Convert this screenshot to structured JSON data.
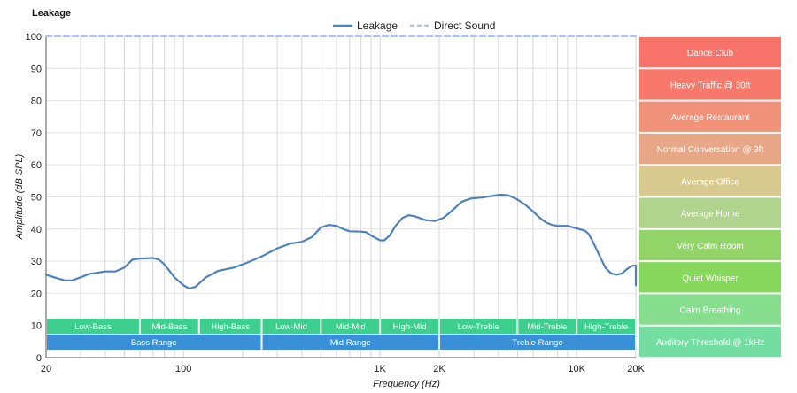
{
  "chart_data": {
    "type": "line",
    "title": "Leakage",
    "xlabel": "Frequency (Hz)",
    "ylabel": "Amplitude (dB SPL)",
    "x_scale": "log",
    "xlim": [
      20,
      20000
    ],
    "ylim": [
      0,
      100
    ],
    "y_ticks": [
      0,
      10,
      20,
      30,
      40,
      50,
      60,
      70,
      80,
      90,
      100
    ],
    "x_ticks": [
      {
        "value": 20,
        "label": "20"
      },
      {
        "value": 100,
        "label": "100"
      },
      {
        "value": 1000,
        "label": "1K"
      },
      {
        "value": 2000,
        "label": "2K"
      },
      {
        "value": 10000,
        "label": "10K"
      },
      {
        "value": 20000,
        "label": "20K"
      }
    ],
    "grid": true,
    "legend": {
      "position": "top-center",
      "items": [
        {
          "name": "Leakage",
          "color": "#4f81bd",
          "style": "solid"
        },
        {
          "name": "Direct Sound",
          "color": "#a9c4ef",
          "style": "dashed"
        }
      ]
    },
    "series": [
      {
        "name": "Leakage",
        "color": "#4f81bd",
        "points": [
          [
            20,
            25.8
          ],
          [
            22,
            25
          ],
          [
            25,
            24
          ],
          [
            27,
            24
          ],
          [
            30,
            25
          ],
          [
            33,
            26
          ],
          [
            40,
            26.8
          ],
          [
            45,
            26.8
          ],
          [
            50,
            28
          ],
          [
            55,
            30.5
          ],
          [
            60,
            30.8
          ],
          [
            70,
            31
          ],
          [
            75,
            30.5
          ],
          [
            80,
            29
          ],
          [
            90,
            25
          ],
          [
            100,
            22.5
          ],
          [
            107,
            21.5
          ],
          [
            115,
            22
          ],
          [
            130,
            25
          ],
          [
            150,
            27
          ],
          [
            180,
            28
          ],
          [
            210,
            29.5
          ],
          [
            250,
            31.5
          ],
          [
            300,
            34
          ],
          [
            350,
            35.5
          ],
          [
            400,
            36
          ],
          [
            450,
            37.5
          ],
          [
            500,
            40.5
          ],
          [
            550,
            41.3
          ],
          [
            600,
            41
          ],
          [
            650,
            40
          ],
          [
            700,
            39.3
          ],
          [
            800,
            39.2
          ],
          [
            850,
            39
          ],
          [
            900,
            38
          ],
          [
            1000,
            36.5
          ],
          [
            1050,
            36.5
          ],
          [
            1120,
            38
          ],
          [
            1200,
            41
          ],
          [
            1300,
            43.5
          ],
          [
            1400,
            44.3
          ],
          [
            1500,
            44
          ],
          [
            1700,
            42.8
          ],
          [
            1900,
            42.5
          ],
          [
            2100,
            43.5
          ],
          [
            2300,
            45.5
          ],
          [
            2600,
            48.5
          ],
          [
            2900,
            49.5
          ],
          [
            3300,
            49.8
          ],
          [
            3700,
            50.3
          ],
          [
            4100,
            50.7
          ],
          [
            4500,
            50.5
          ],
          [
            5000,
            49.2
          ],
          [
            5500,
            47.5
          ],
          [
            6000,
            45.5
          ],
          [
            6500,
            43.5
          ],
          [
            7000,
            42
          ],
          [
            7500,
            41.3
          ],
          [
            8000,
            41
          ],
          [
            9000,
            41
          ],
          [
            10000,
            40.2
          ],
          [
            11000,
            39.5
          ],
          [
            11500,
            38.5
          ],
          [
            12000,
            36.5
          ],
          [
            13000,
            32
          ],
          [
            14000,
            28
          ],
          [
            15000,
            26.2
          ],
          [
            16000,
            25.8
          ],
          [
            17000,
            26.2
          ],
          [
            18000,
            27.5
          ],
          [
            19000,
            28.5
          ],
          [
            20500,
            28.7
          ],
          [
            21500,
            27.5
          ],
          [
            23000,
            25
          ],
          [
            24500,
            22.5
          ]
        ]
      },
      {
        "name": "Direct Sound",
        "color": "#a9c4ef",
        "style": "dashed",
        "points": [
          [
            20,
            100
          ],
          [
            24500,
            100
          ]
        ]
      }
    ],
    "frequency_bands": [
      {
        "label": "Low-Bass",
        "from": 20,
        "to": 60,
        "color": "#3ecf8e"
      },
      {
        "label": "Mid-Bass",
        "from": 60,
        "to": 120,
        "color": "#3ecf8e"
      },
      {
        "label": "High-Bass",
        "from": 120,
        "to": 250,
        "color": "#3ecf8e"
      },
      {
        "label": "Low-Mid",
        "from": 250,
        "to": 500,
        "color": "#3ecf8e"
      },
      {
        "label": "Mid-Mid",
        "from": 500,
        "to": 1000,
        "color": "#3ecf8e"
      },
      {
        "label": "High-Mid",
        "from": 1000,
        "to": 2000,
        "color": "#3ecf8e"
      },
      {
        "label": "Low-Treble",
        "from": 2000,
        "to": 5000,
        "color": "#3ecf8e"
      },
      {
        "label": "Mid-Treble",
        "from": 5000,
        "to": 10000,
        "color": "#3ecf8e"
      },
      {
        "label": "High-Treble",
        "from": 10000,
        "to": 24500,
        "color": "#3ecf8e"
      }
    ],
    "frequency_ranges": [
      {
        "label": "Bass Range",
        "from": 20,
        "to": 250,
        "color": "#3a8fd9"
      },
      {
        "label": "Mid Range",
        "from": 250,
        "to": 2000,
        "color": "#3a8fd9"
      },
      {
        "label": "Treble Range",
        "from": 2000,
        "to": 24500,
        "color": "#3a8fd9"
      }
    ],
    "reference_levels": [
      {
        "label": "Dance Club",
        "color": "#f8746a"
      },
      {
        "label": "Heavy Traffic @ 30ft",
        "color": "#f8796b"
      },
      {
        "label": "Average Restaurant",
        "color": "#f1927a"
      },
      {
        "label": "Normal Conversation @ 3ft",
        "color": "#e8a887"
      },
      {
        "label": "Average Office",
        "color": "#d8c98e"
      },
      {
        "label": "Average Home",
        "color": "#b0d48e"
      },
      {
        "label": "Very Calm Room",
        "color": "#92d468"
      },
      {
        "label": "Quiet Whisper",
        "color": "#86d75c"
      },
      {
        "label": "Calm Breathing",
        "color": "#86de8e"
      },
      {
        "label": "Auditory Threshold @ 1kHz",
        "color": "#74dea2"
      }
    ]
  }
}
